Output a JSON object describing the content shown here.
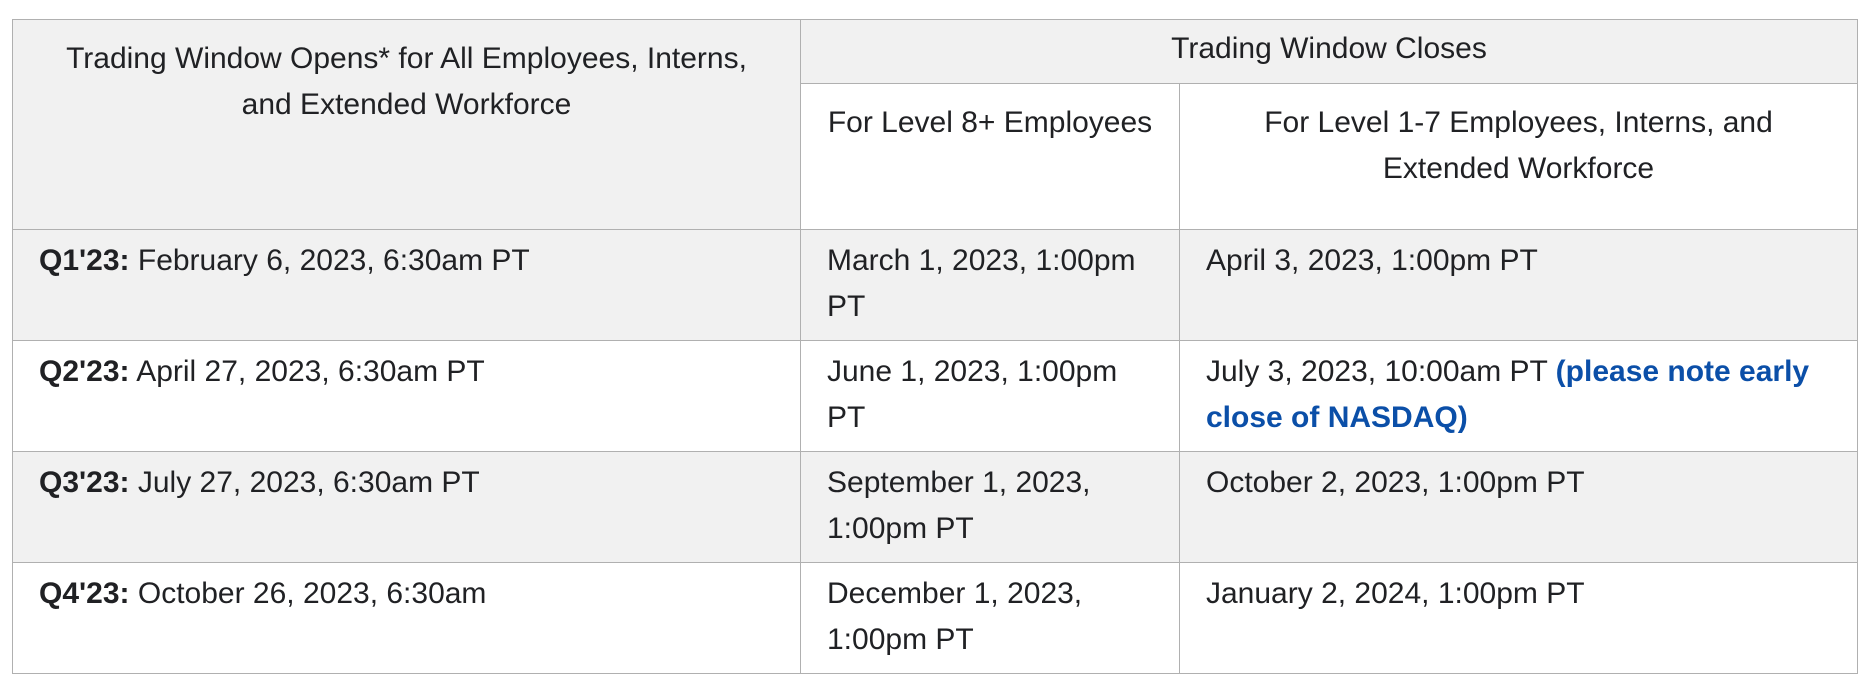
{
  "header": {
    "opens": "Trading Window Opens* for All Employees, Interns, and Extended Workforce",
    "closes": "Trading Window Closes",
    "level8": "For Level 8+ Employees",
    "level1_7": "For Level 1-7 Employees, Interns, and Extended Workforce"
  },
  "rows": [
    {
      "quarter": "Q1'23",
      "sep": ":",
      "opens": " February 6, 2023, 6:30am PT",
      "close_level8": "March 1, 2023, 1:00pm PT",
      "close_level1_7": "April 3, 2023, 1:00pm PT",
      "note": ""
    },
    {
      "quarter": "Q2'23",
      "sep": ":",
      "opens": " April 27, 2023, 6:30am PT",
      "close_level8": "June 1, 2023, 1:00pm PT",
      "close_level1_7": "July 3, 2023, 10:00am PT ",
      "note": "(please note early close of NASDAQ)"
    },
    {
      "quarter": "Q3'23",
      "sep": ":",
      "opens": " July 27, 2023, 6:30am PT",
      "close_level8": "September 1, 2023, 1:00pm PT",
      "close_level1_7": "October 2, 2023, 1:00pm PT",
      "note": ""
    },
    {
      "quarter": "Q4'23",
      "sep": ":",
      "opens": " October 26, 2023, 6:30am",
      "close_level8": "December 1, 2023, 1:00pm PT",
      "close_level1_7": "January 2, 2024, 1:00pm PT",
      "note": ""
    }
  ],
  "colors": {
    "header_bg": "#f1f1f1",
    "border": "#b0b0b0",
    "note": "#0b4fa8"
  }
}
